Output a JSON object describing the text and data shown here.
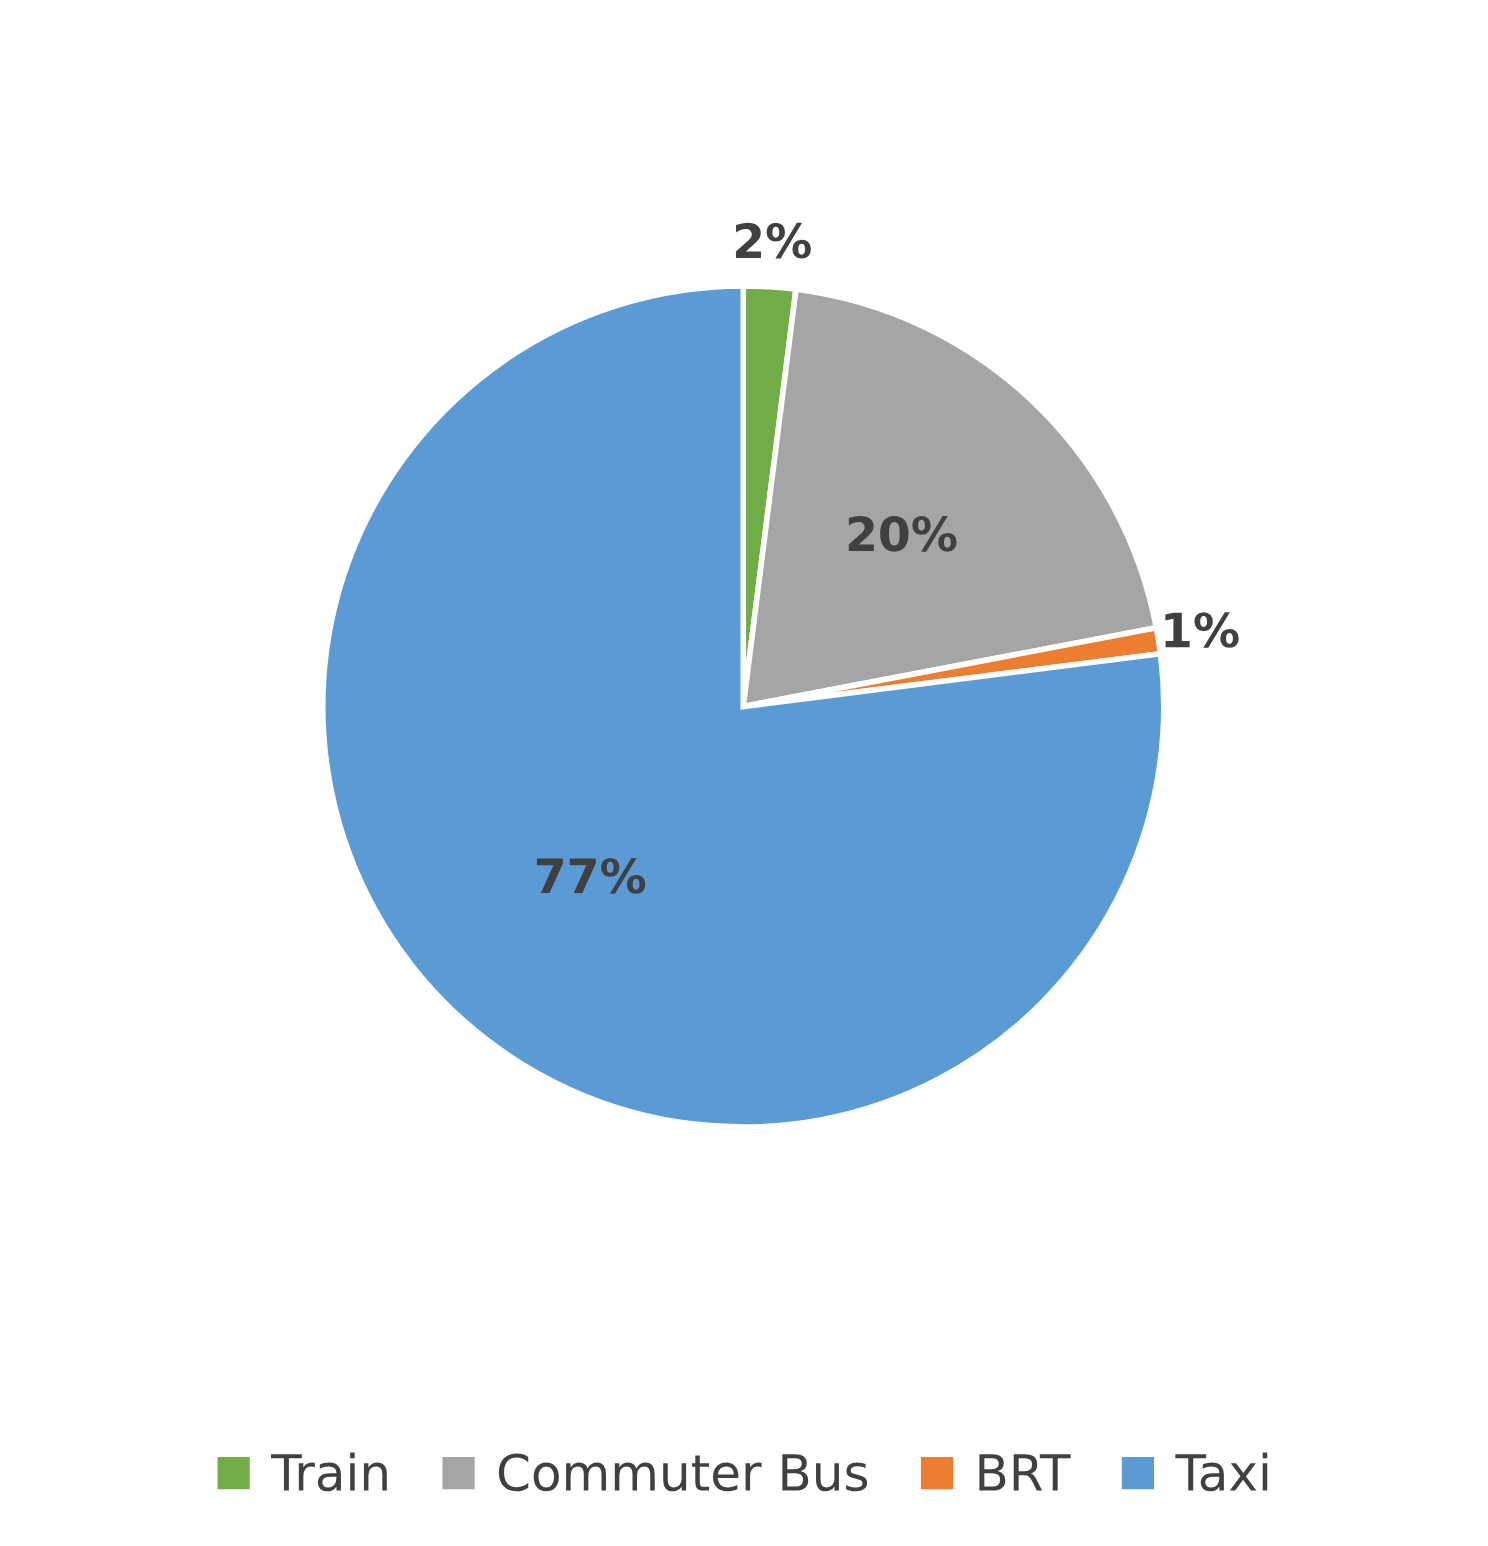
{
  "chart_data": {
    "type": "pie",
    "categories": [
      "Train",
      "Commuter Bus",
      "BRT",
      "Taxi"
    ],
    "values": [
      2,
      20,
      1,
      77
    ],
    "colors": [
      "#70ad47",
      "#a5a5a5",
      "#ed7d31",
      "#5b9bd5"
    ],
    "value_labels": [
      "2%",
      "20%",
      "1%",
      "77%"
    ],
    "legend": "bottom"
  }
}
